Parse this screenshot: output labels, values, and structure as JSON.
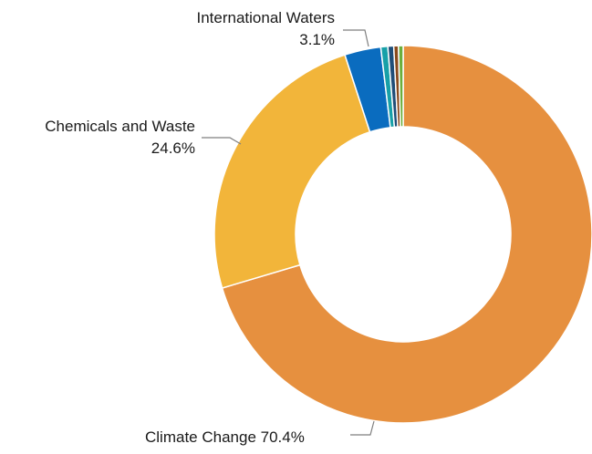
{
  "chart_data": {
    "type": "pie",
    "variant": "donut",
    "title": "",
    "slices": [
      {
        "label": "Climate Change",
        "value": 70.4,
        "value_label": "70.4%",
        "color": "#E6903F"
      },
      {
        "label": "Chemicals and Waste",
        "value": 24.6,
        "value_label": "24.6%",
        "color": "#F2B53A"
      },
      {
        "label": "International Waters",
        "value": 3.1,
        "value_label": "3.1%",
        "color": "#0A6CBF"
      },
      {
        "label": "",
        "value": 0.6,
        "value_label": "",
        "color": "#17A0A8"
      },
      {
        "label": "",
        "value": 0.5,
        "value_label": "",
        "color": "#1F4E79"
      },
      {
        "label": "",
        "value": 0.4,
        "value_label": "",
        "color": "#8A4A1C"
      },
      {
        "label": "",
        "value": 0.4,
        "value_label": "",
        "color": "#6BAF3C"
      }
    ],
    "legend": "none"
  }
}
